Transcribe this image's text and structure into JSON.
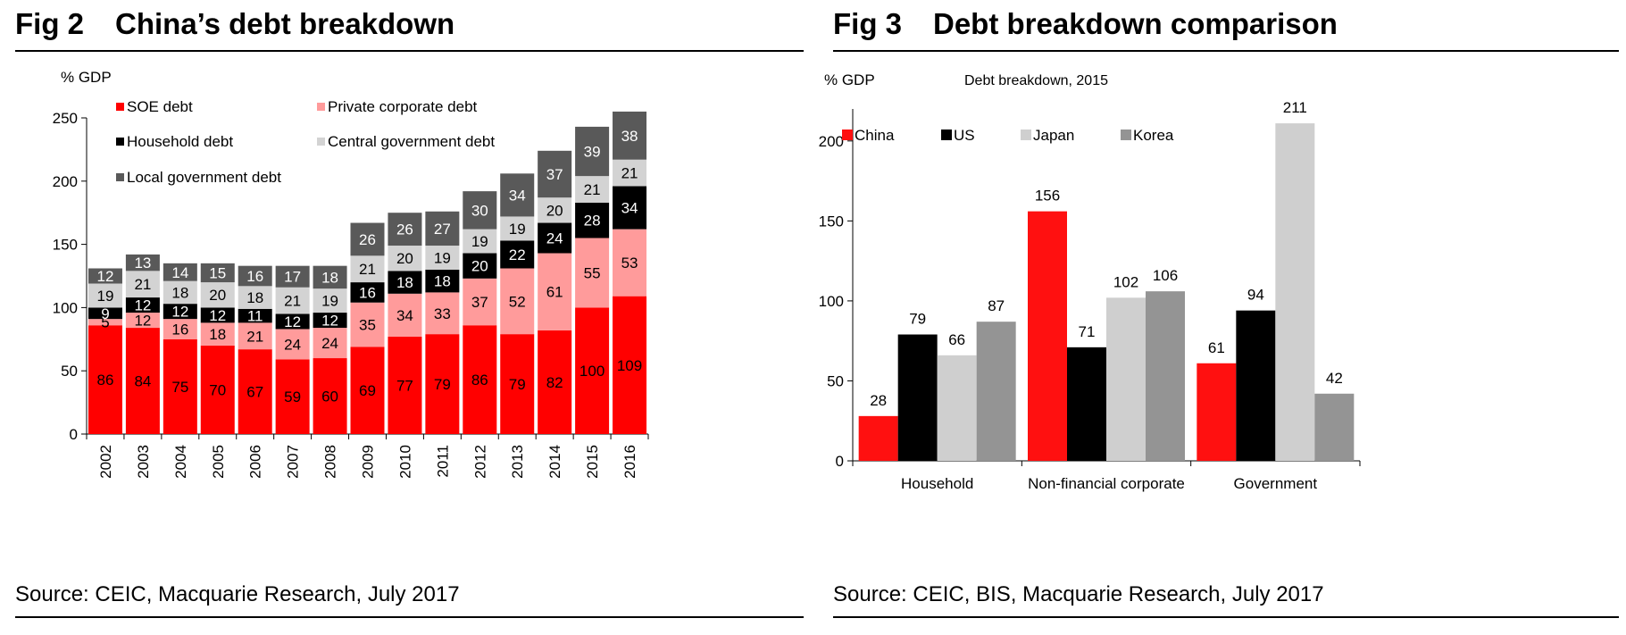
{
  "figures": {
    "fig2": {
      "number": "Fig 2",
      "title": "China’s debt breakdown",
      "source": "Source: CEIC, Macquarie Research, July 2017"
    },
    "fig3": {
      "number": "Fig 3",
      "title": "Debt breakdown comparison",
      "source": "Source: CEIC, BIS, Macquarie Research, July 2017"
    }
  },
  "chart_data": [
    {
      "type": "bar",
      "stacked": true,
      "title": "China’s debt breakdown",
      "ylabel": "% GDP",
      "ylim": [
        0,
        250
      ],
      "yticks": [
        0,
        50,
        100,
        150,
        200,
        250
      ],
      "categories": [
        "2002",
        "2003",
        "2004",
        "2005",
        "2006",
        "2007",
        "2008",
        "2009",
        "2010",
        "2011",
        "2012",
        "2013",
        "2014",
        "2015",
        "2016"
      ],
      "series": [
        {
          "name": "SOE debt",
          "color": "#ff0000",
          "label_color": "#000000",
          "values": [
            86,
            84,
            75,
            70,
            67,
            59,
            60,
            69,
            77,
            79,
            86,
            79,
            82,
            100,
            109
          ]
        },
        {
          "name": "Private corporate debt",
          "color": "#ff9b9b",
          "label_color": "#000000",
          "values": [
            5,
            12,
            16,
            18,
            21,
            24,
            24,
            35,
            34,
            33,
            37,
            52,
            61,
            55,
            53
          ]
        },
        {
          "name": "Household debt",
          "color": "#000000",
          "label_color": "#ffffff",
          "values": [
            9,
            12,
            12,
            12,
            11,
            12,
            12,
            16,
            18,
            18,
            20,
            22,
            24,
            28,
            34
          ]
        },
        {
          "name": "Central government debt",
          "color": "#d3d3d3",
          "label_color": "#000000",
          "values": [
            19,
            21,
            18,
            20,
            18,
            21,
            19,
            21,
            20,
            19,
            19,
            19,
            20,
            21,
            21
          ]
        },
        {
          "name": "Local government debt",
          "color": "#595959",
          "label_color": "#ffffff",
          "values": [
            12,
            13,
            14,
            15,
            16,
            17,
            18,
            26,
            26,
            27,
            30,
            34,
            37,
            39,
            38
          ]
        }
      ],
      "legend": "top-left"
    },
    {
      "type": "bar",
      "title": "Debt breakdown, 2015",
      "ylabel": "% GDP",
      "ylim": [
        0,
        220
      ],
      "yticks": [
        0,
        50,
        100,
        150,
        200
      ],
      "categories": [
        "Household",
        "Non-financial corporate",
        "Government"
      ],
      "series": [
        {
          "name": "China",
          "color": "#ff1010",
          "values": [
            28,
            156,
            61
          ]
        },
        {
          "name": "US",
          "color": "#000000",
          "values": [
            79,
            71,
            94
          ]
        },
        {
          "name": "Japan",
          "color": "#cfcfcf",
          "values": [
            66,
            102,
            211
          ]
        },
        {
          "name": "Korea",
          "color": "#949494",
          "values": [
            87,
            106,
            42
          ]
        }
      ],
      "legend": "top"
    }
  ]
}
